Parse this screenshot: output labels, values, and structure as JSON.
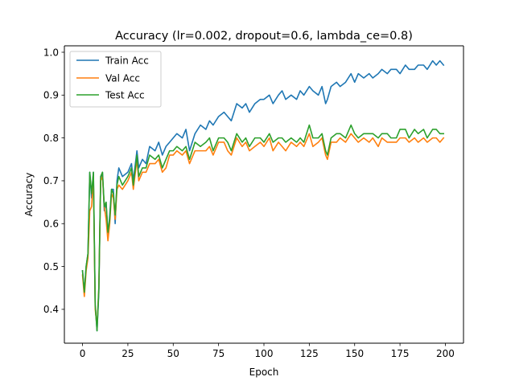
{
  "chart_data": {
    "type": "line",
    "title": "Accuracy (lr=0.002, dropout=0.6, lambda_ce=0.8)",
    "xlabel": "Epoch",
    "ylabel": "Accuracy",
    "xlim": [
      -10,
      210
    ],
    "ylim": [
      0.321,
      1.015
    ],
    "xticks": [
      0,
      25,
      50,
      75,
      100,
      125,
      150,
      175,
      200
    ],
    "xtick_labels": [
      "0",
      "25",
      "50",
      "75",
      "100",
      "125",
      "150",
      "175",
      "200"
    ],
    "yticks": [
      0.4,
      0.5,
      0.6,
      0.7,
      0.8,
      0.9,
      1.0
    ],
    "ytick_labels": [
      "0.4",
      "0.5",
      "0.6",
      "0.7",
      "0.8",
      "0.9",
      "1.0"
    ],
    "grid": false,
    "legend_position": "top-left",
    "anchors": [
      [
        0,
        0.49,
        0.48,
        0.49
      ],
      [
        1,
        0.44,
        0.43,
        0.44
      ],
      [
        2,
        0.5,
        0.49,
        0.5
      ],
      [
        3,
        0.53,
        0.52,
        0.53
      ],
      [
        4,
        0.72,
        0.63,
        0.72
      ],
      [
        5,
        0.66,
        0.64,
        0.67
      ],
      [
        6,
        0.72,
        0.71,
        0.72
      ],
      [
        7,
        0.41,
        0.4,
        0.41
      ],
      [
        8,
        0.35,
        0.36,
        0.35
      ],
      [
        9,
        0.44,
        0.45,
        0.45
      ],
      [
        10,
        0.7,
        0.7,
        0.71
      ],
      [
        11,
        0.72,
        0.71,
        0.72
      ],
      [
        12,
        0.63,
        0.64,
        0.64
      ],
      [
        13,
        0.65,
        0.61,
        0.65
      ],
      [
        14,
        0.57,
        0.56,
        0.58
      ],
      [
        15,
        0.62,
        0.6,
        0.61
      ],
      [
        16,
        0.68,
        0.67,
        0.68
      ],
      [
        17,
        0.68,
        0.66,
        0.67
      ],
      [
        18,
        0.6,
        0.61,
        0.62
      ],
      [
        19,
        0.7,
        0.68,
        0.69
      ],
      [
        20,
        0.73,
        0.69,
        0.71
      ],
      [
        22,
        0.71,
        0.68,
        0.69
      ],
      [
        25,
        0.72,
        0.7,
        0.71
      ],
      [
        27,
        0.74,
        0.72,
        0.73
      ],
      [
        28,
        0.7,
        0.68,
        0.69
      ],
      [
        30,
        0.77,
        0.75,
        0.76
      ],
      [
        31,
        0.73,
        0.7,
        0.71
      ],
      [
        33,
        0.75,
        0.72,
        0.73
      ],
      [
        35,
        0.74,
        0.72,
        0.73
      ],
      [
        37,
        0.78,
        0.74,
        0.76
      ],
      [
        40,
        0.77,
        0.74,
        0.75
      ],
      [
        42,
        0.79,
        0.75,
        0.76
      ],
      [
        44,
        0.76,
        0.72,
        0.73
      ],
      [
        46,
        0.78,
        0.73,
        0.75
      ],
      [
        48,
        0.79,
        0.76,
        0.77
      ],
      [
        50,
        0.8,
        0.76,
        0.77
      ],
      [
        52,
        0.81,
        0.77,
        0.78
      ],
      [
        55,
        0.8,
        0.76,
        0.77
      ],
      [
        57,
        0.82,
        0.77,
        0.78
      ],
      [
        59,
        0.77,
        0.74,
        0.75
      ],
      [
        62,
        0.81,
        0.77,
        0.79
      ],
      [
        65,
        0.83,
        0.77,
        0.78
      ],
      [
        68,
        0.82,
        0.77,
        0.79
      ],
      [
        70,
        0.84,
        0.78,
        0.8
      ],
      [
        72,
        0.83,
        0.76,
        0.77
      ],
      [
        75,
        0.85,
        0.79,
        0.8
      ],
      [
        78,
        0.86,
        0.79,
        0.8
      ],
      [
        80,
        0.85,
        0.77,
        0.79
      ],
      [
        82,
        0.84,
        0.76,
        0.77
      ],
      [
        85,
        0.88,
        0.8,
        0.81
      ],
      [
        88,
        0.87,
        0.78,
        0.79
      ],
      [
        90,
        0.88,
        0.79,
        0.8
      ],
      [
        92,
        0.86,
        0.77,
        0.78
      ],
      [
        95,
        0.88,
        0.78,
        0.8
      ],
      [
        98,
        0.89,
        0.79,
        0.8
      ],
      [
        100,
        0.89,
        0.78,
        0.79
      ],
      [
        103,
        0.9,
        0.8,
        0.81
      ],
      [
        105,
        0.88,
        0.77,
        0.79
      ],
      [
        108,
        0.9,
        0.79,
        0.8
      ],
      [
        110,
        0.91,
        0.78,
        0.8
      ],
      [
        112,
        0.89,
        0.77,
        0.79
      ],
      [
        115,
        0.9,
        0.79,
        0.8
      ],
      [
        118,
        0.89,
        0.78,
        0.79
      ],
      [
        120,
        0.91,
        0.79,
        0.8
      ],
      [
        122,
        0.9,
        0.78,
        0.79
      ],
      [
        125,
        0.92,
        0.81,
        0.83
      ],
      [
        127,
        0.91,
        0.78,
        0.8
      ],
      [
        130,
        0.9,
        0.79,
        0.8
      ],
      [
        132,
        0.92,
        0.8,
        0.81
      ],
      [
        134,
        0.88,
        0.76,
        0.77
      ],
      [
        135,
        0.89,
        0.75,
        0.76
      ],
      [
        137,
        0.92,
        0.79,
        0.8
      ],
      [
        140,
        0.93,
        0.79,
        0.81
      ],
      [
        142,
        0.92,
        0.8,
        0.81
      ],
      [
        145,
        0.93,
        0.79,
        0.8
      ],
      [
        148,
        0.95,
        0.81,
        0.83
      ],
      [
        150,
        0.93,
        0.8,
        0.81
      ],
      [
        152,
        0.95,
        0.79,
        0.8
      ],
      [
        155,
        0.94,
        0.8,
        0.81
      ],
      [
        158,
        0.95,
        0.79,
        0.81
      ],
      [
        160,
        0.94,
        0.8,
        0.81
      ],
      [
        163,
        0.95,
        0.78,
        0.8
      ],
      [
        165,
        0.96,
        0.8,
        0.81
      ],
      [
        168,
        0.95,
        0.79,
        0.81
      ],
      [
        170,
        0.96,
        0.79,
        0.8
      ],
      [
        173,
        0.96,
        0.79,
        0.8
      ],
      [
        175,
        0.95,
        0.8,
        0.82
      ],
      [
        178,
        0.97,
        0.8,
        0.82
      ],
      [
        180,
        0.96,
        0.79,
        0.8
      ],
      [
        183,
        0.96,
        0.8,
        0.82
      ],
      [
        185,
        0.97,
        0.79,
        0.81
      ],
      [
        188,
        0.97,
        0.8,
        0.82
      ],
      [
        190,
        0.96,
        0.79,
        0.8
      ],
      [
        193,
        0.98,
        0.8,
        0.82
      ],
      [
        195,
        0.97,
        0.8,
        0.82
      ],
      [
        197,
        0.98,
        0.79,
        0.81
      ],
      [
        199,
        0.97,
        0.8,
        0.81
      ]
    ],
    "series": [
      {
        "name": "Train Acc",
        "color": "#1f77b4"
      },
      {
        "name": "Val Acc",
        "color": "#ff7f0e"
      },
      {
        "name": "Test Acc",
        "color": "#2ca02c"
      }
    ]
  }
}
